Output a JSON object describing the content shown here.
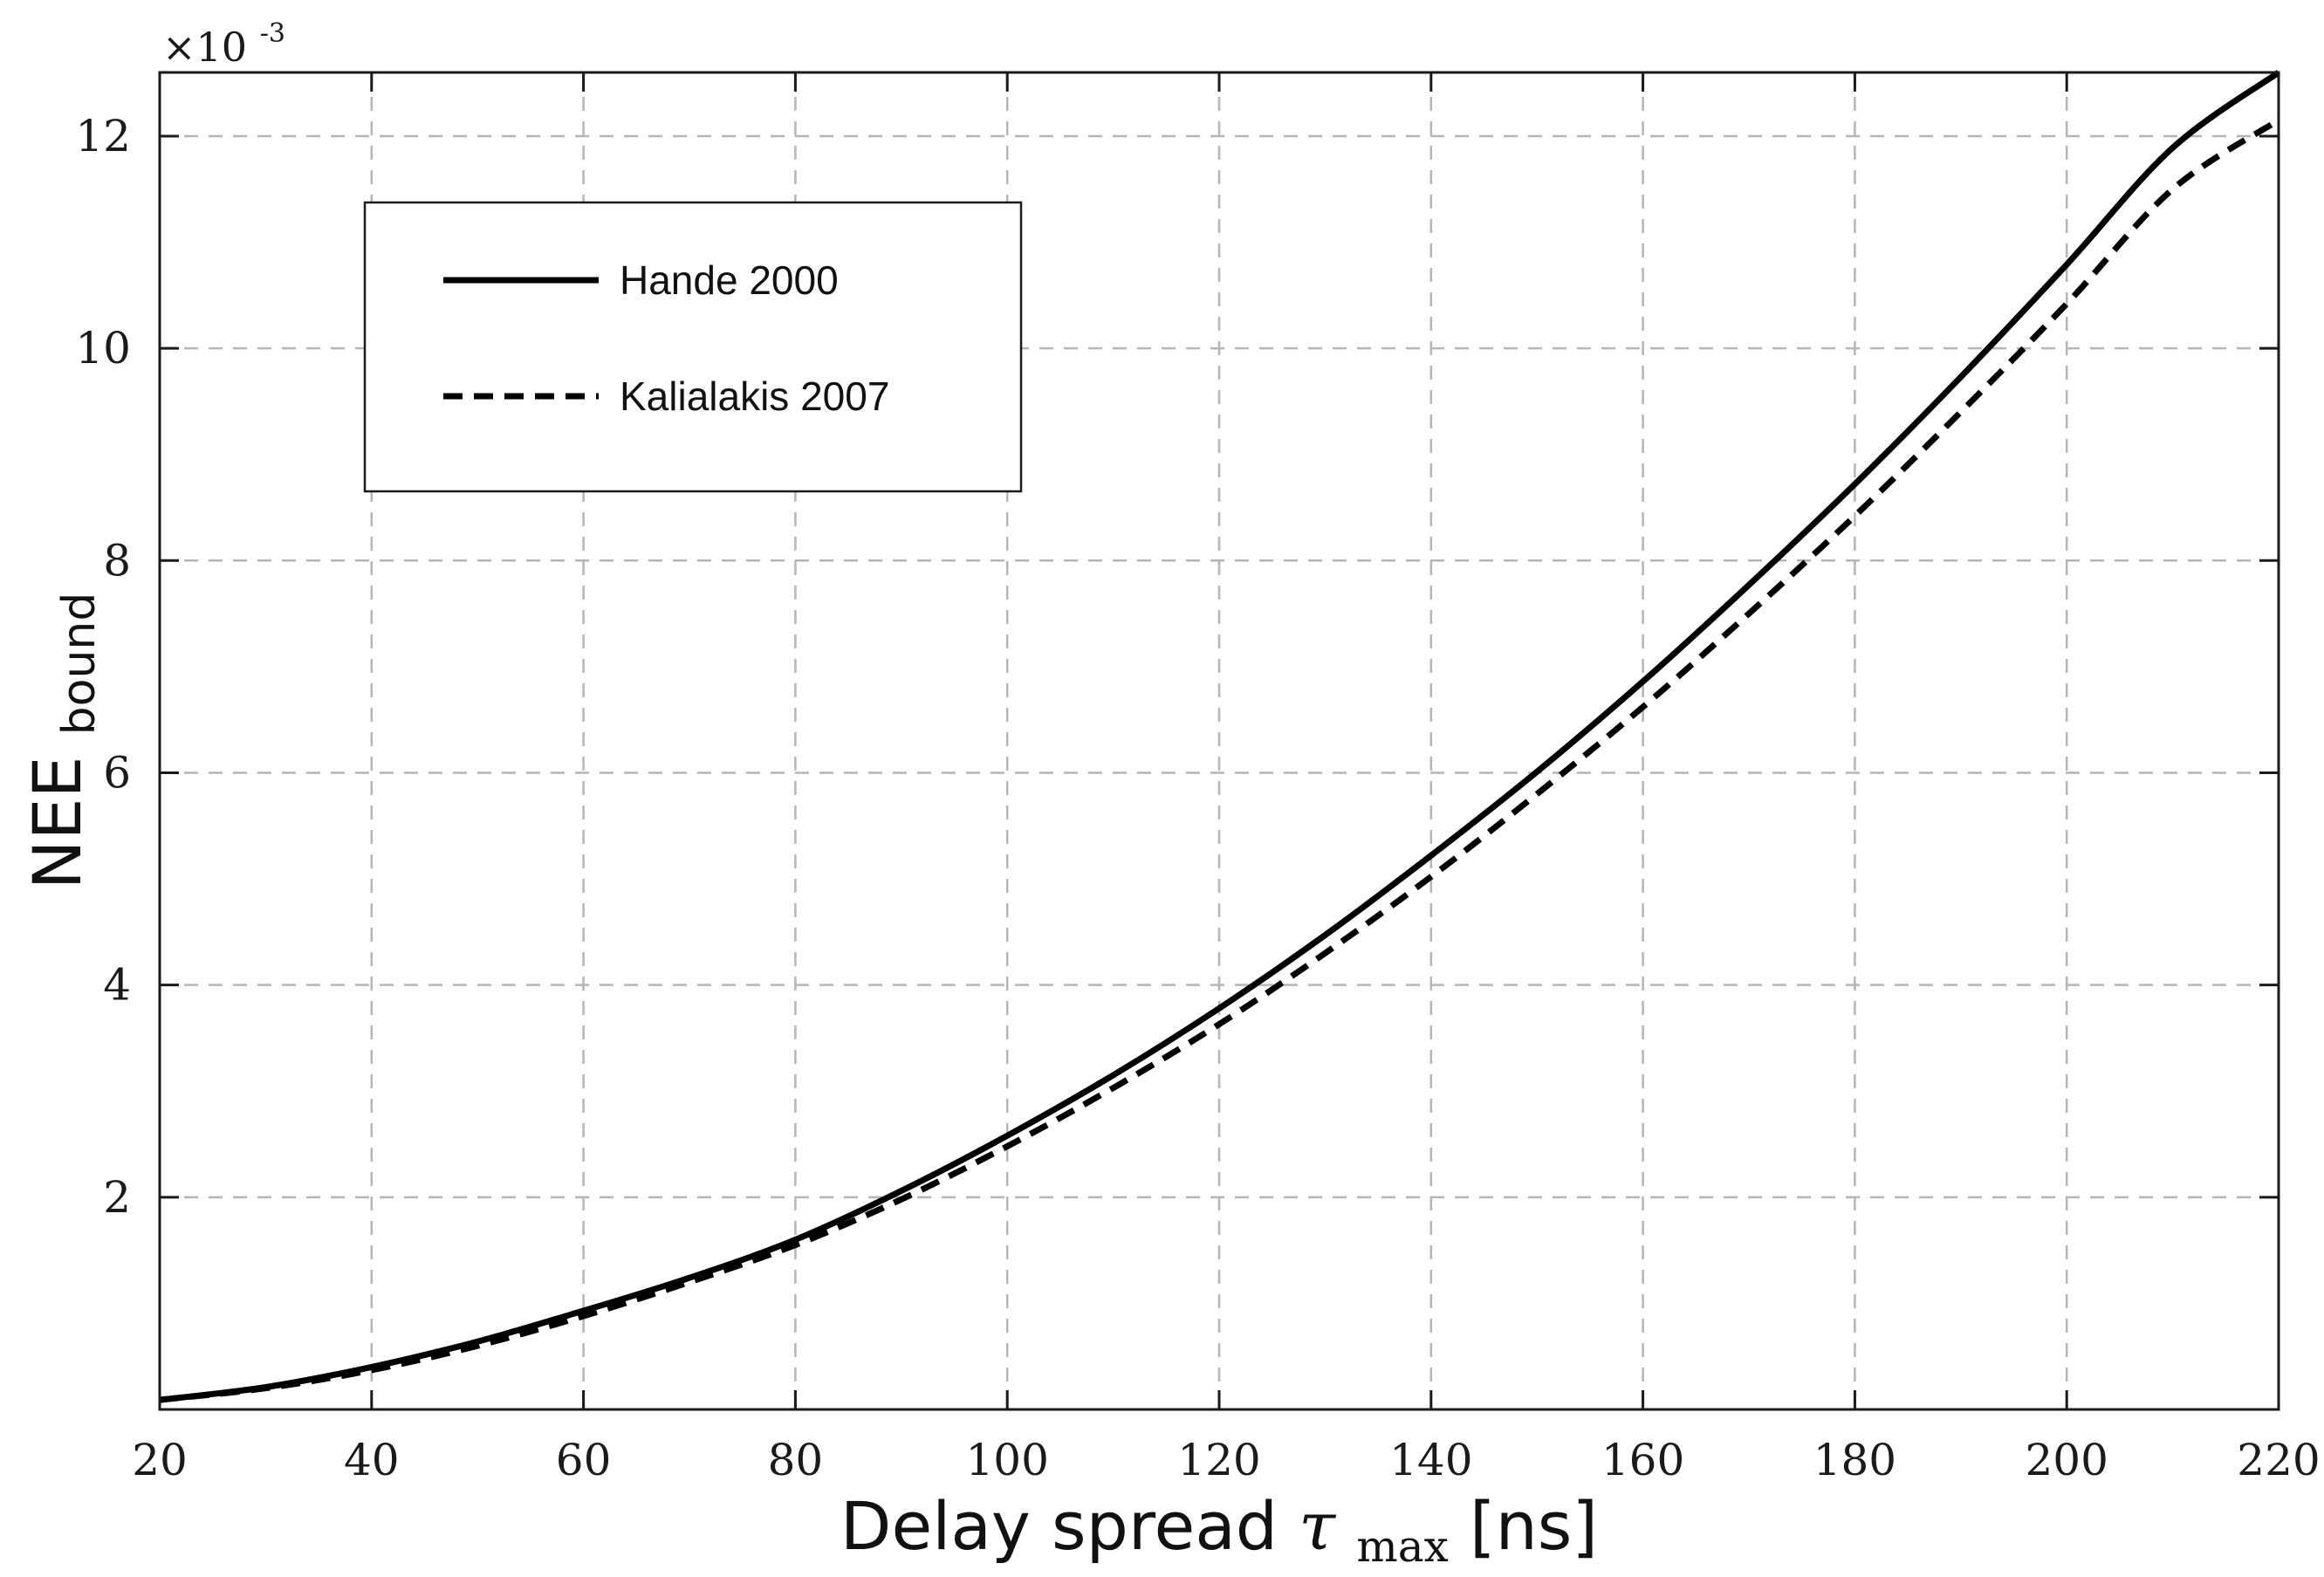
{
  "chart_data": {
    "type": "line",
    "xlabel": {
      "prefix": "Delay spread ",
      "symbol": "τ",
      "subscript": "max",
      "suffix": " [ns]"
    },
    "ylabel": {
      "main": "NEE",
      "subscript": "bound"
    },
    "y_multiplier": {
      "prefix": "×10",
      "exponent": "-3"
    },
    "xlim": [
      20,
      220
    ],
    "ylim": [
      0.0001,
      12.6
    ],
    "x_ticks": [
      20,
      40,
      60,
      80,
      100,
      120,
      140,
      160,
      180,
      200,
      220
    ],
    "x_tick_labels": [
      "20",
      "40",
      "60",
      "80",
      "100",
      "120",
      "140",
      "160",
      "180",
      "200",
      "220"
    ],
    "y_ticks": [
      2,
      4,
      6,
      8,
      10,
      12
    ],
    "y_tick_labels": [
      "2",
      "4",
      "6",
      "8",
      "10",
      "12"
    ],
    "grid": true,
    "legend_position": "top-left",
    "series": [
      {
        "name": "Hande 2000",
        "style": "solid",
        "color": "#000000",
        "x": [
          20,
          30,
          40,
          50,
          60,
          70,
          80,
          90,
          100,
          110,
          120,
          130,
          140,
          150,
          160,
          170,
          180,
          190,
          200,
          210,
          220
        ],
        "y": [
          0.09,
          0.21,
          0.4,
          0.64,
          0.93,
          1.24,
          1.6,
          2.06,
          2.58,
          3.15,
          3.78,
          4.47,
          5.22,
          6.01,
          6.86,
          7.77,
          8.72,
          9.73,
          10.79,
          11.89,
          12.6
        ]
      },
      {
        "name": "Kalialakis 2007",
        "style": "dashed",
        "color": "#000000",
        "x": [
          20,
          30,
          40,
          50,
          60,
          70,
          80,
          90,
          100,
          110,
          120,
          130,
          140,
          150,
          160,
          170,
          180,
          190,
          200,
          210,
          220
        ],
        "y": [
          0.09,
          0.2,
          0.37,
          0.6,
          0.88,
          1.2,
          1.55,
          1.98,
          2.48,
          3.03,
          3.63,
          4.3,
          5.02,
          5.8,
          6.62,
          7.5,
          8.42,
          9.4,
          10.42,
          11.5,
          12.15
        ]
      }
    ]
  }
}
